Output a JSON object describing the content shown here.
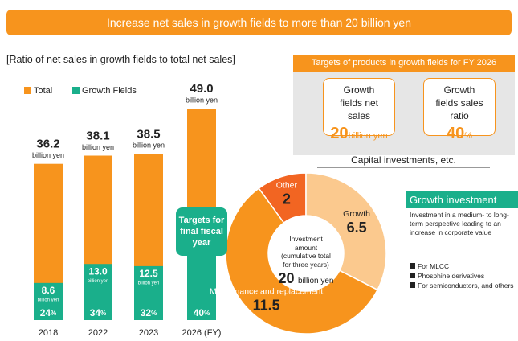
{
  "banner": "Increase net sales in growth fields to more than 20 billion yen",
  "chart_data": [
    {
      "type": "bar",
      "title": "[Ratio of net sales in growth fields to total net sales]",
      "categories": [
        "2018",
        "2022",
        "2023",
        "2026 (FY)"
      ],
      "unit": "billion yen",
      "series": [
        {
          "name": "Total",
          "color": "#f7941d",
          "values": [
            36.2,
            38.1,
            38.5,
            49.0
          ],
          "value_labels": [
            "36.2",
            "38.1",
            "38.5",
            "49.0"
          ]
        },
        {
          "name": "Growth Fields",
          "color": "#1aaf8b",
          "values": [
            8.6,
            13.0,
            12.5,
            20.0
          ],
          "value_labels": [
            "8.6",
            "13.0",
            "12.5",
            "20.0"
          ]
        }
      ],
      "ratios": [
        24,
        34,
        32,
        40
      ],
      "ratio_unit": "%",
      "annotation": "Targets for final fiscal year"
    },
    {
      "type": "pie",
      "title": "Capital investments, etc.",
      "categories": [
        "Other",
        "Growth",
        "Maintenance and replacement"
      ],
      "values": [
        2,
        6.5,
        11.5
      ],
      "colors": [
        "#f26522",
        "#fbc98e",
        "#f7941d"
      ],
      "center": {
        "label": "Investment amount (cumulative total for three years)",
        "value": 20,
        "unit": "billion yen"
      }
    }
  ],
  "targets": {
    "title": "Targets of products in growth fields for FY 2026",
    "items": [
      {
        "label": "Growth fields net sales",
        "value": 20,
        "unit": "billion yen"
      },
      {
        "label": "Growth fields sales ratio",
        "value": 40,
        "unit": "%"
      }
    ]
  },
  "growth_box": {
    "title": "Growth investment",
    "text": "Investment in a medium- to long-term perspective leading to an increase in corporate value",
    "items": [
      "For MLCC",
      "Phosphine derivatives",
      "For semiconductors, and others"
    ]
  }
}
